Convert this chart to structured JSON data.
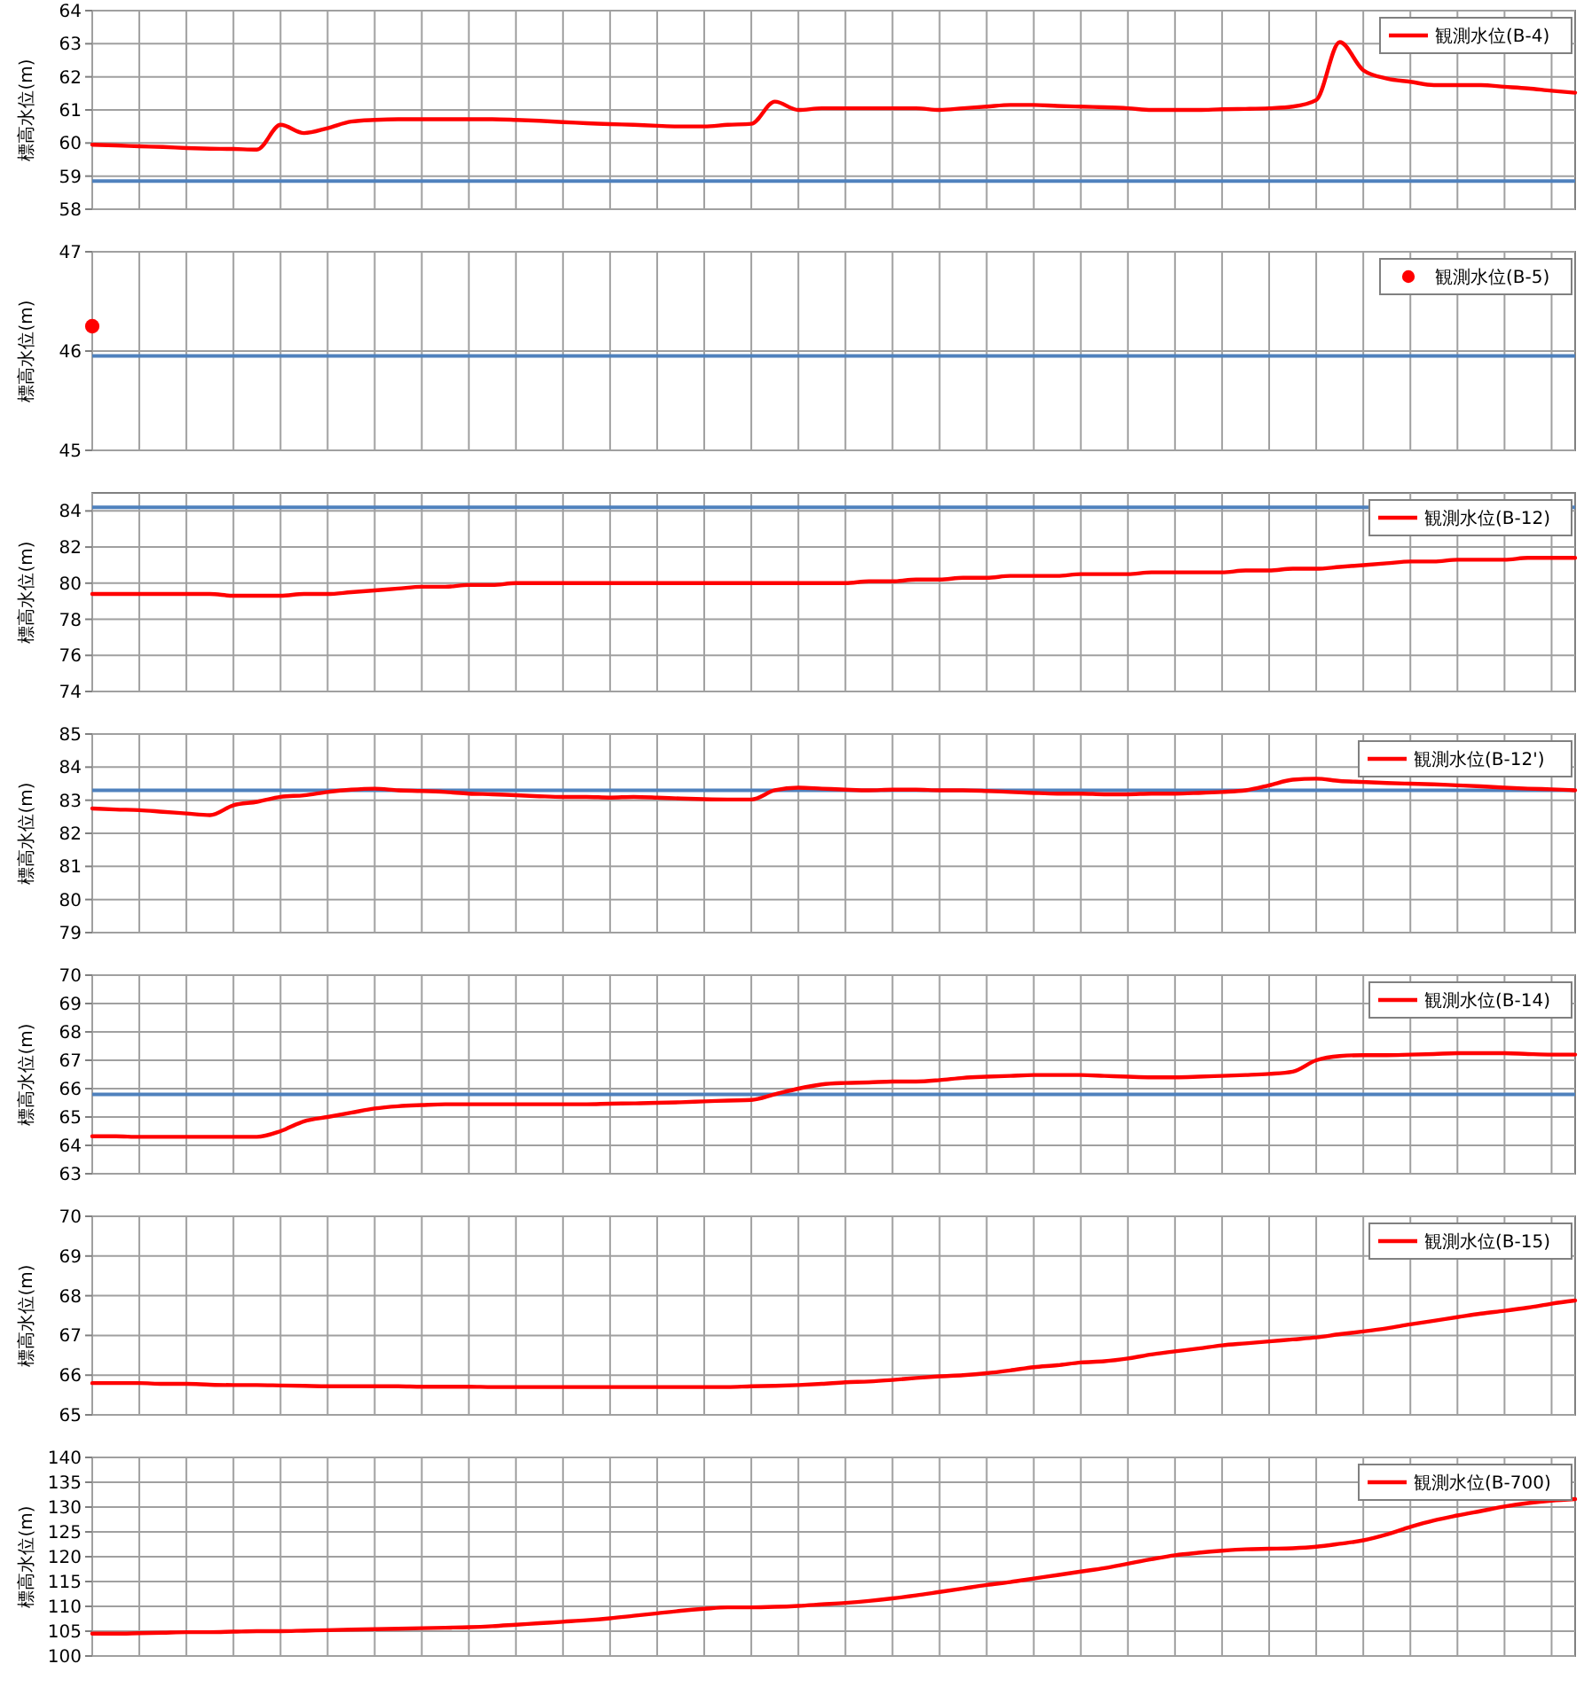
{
  "chart_data": [
    {
      "type": "line",
      "ylabel": "標高水位(m)",
      "categories": [
        null,
        null,
        null,
        null,
        null,
        null,
        null,
        null,
        null,
        null,
        null,
        null,
        null,
        null,
        null,
        null,
        null,
        null,
        null,
        null,
        null,
        null,
        null,
        null,
        null,
        null,
        null,
        null,
        null,
        null,
        null,
        null,
        null,
        null,
        null,
        null,
        null,
        null,
        null,
        null,
        null,
        null,
        null,
        null,
        null,
        null,
        null,
        null,
        null,
        null,
        null,
        null,
        null,
        null,
        null,
        null,
        null,
        null,
        null,
        null,
        null,
        null,
        null,
        null
      ],
      "ylim": [
        58,
        64
      ],
      "yticks": [
        58,
        59,
        60,
        61,
        62,
        63,
        64
      ],
      "grid": true,
      "legend": "top right",
      "tick_labels": "y",
      "ref_lines": [
        {
          "axis": "y",
          "value": 58.85,
          "color": "#4f81bd"
        }
      ],
      "series": [
        {
          "name": "観測水位(B-4)",
          "color": "#ff0000",
          "values": [
            59.95,
            59.93,
            59.9,
            59.88,
            59.85,
            59.83,
            59.82,
            59.8,
            60.55,
            60.3,
            60.45,
            60.65,
            60.7,
            60.72,
            60.72,
            60.72,
            60.72,
            60.72,
            60.7,
            60.67,
            60.63,
            60.6,
            60.57,
            60.55,
            60.52,
            60.5,
            60.5,
            60.55,
            60.58,
            61.25,
            61.0,
            61.05,
            61.05,
            61.05,
            61.05,
            61.05,
            61.0,
            61.05,
            61.1,
            61.15,
            61.15,
            61.12,
            61.1,
            61.08,
            61.05,
            61.0,
            61.0,
            61.0,
            61.02,
            61.03,
            61.05,
            61.1,
            61.3,
            63.05,
            62.2,
            61.95,
            61.85,
            61.75,
            61.75,
            61.75,
            61.7,
            61.65,
            61.58,
            61.52
          ]
        }
      ]
    },
    {
      "type": "scatter",
      "marker": "circle",
      "ylabel": "標高水位(m)",
      "categories": [
        null,
        null,
        null,
        null,
        null,
        null,
        null,
        null,
        null,
        null,
        null,
        null,
        null,
        null,
        null,
        null,
        null,
        null,
        null,
        null,
        null,
        null,
        null,
        null,
        null,
        null,
        null,
        null,
        null,
        null,
        null,
        null,
        null,
        null,
        null,
        null,
        null,
        null,
        null,
        null,
        null,
        null,
        null,
        null,
        null,
        null,
        null,
        null,
        null,
        null,
        null,
        null,
        null,
        null,
        null,
        null,
        null,
        null,
        null,
        null,
        null,
        null,
        null,
        null
      ],
      "ylim": [
        45,
        47
      ],
      "yticks": [
        45,
        46,
        47
      ],
      "grid": true,
      "legend": "top right",
      "tick_labels": "y",
      "ref_lines": [
        {
          "axis": "y",
          "value": 45.95,
          "color": "#4f81bd"
        }
      ],
      "series": [
        {
          "name": "観測水位(B-5)",
          "color": "#ff0000",
          "values": [
            46.25,
            null,
            null,
            null,
            null,
            null,
            null,
            null,
            null,
            null,
            null,
            null,
            null,
            null,
            null,
            null,
            null,
            null,
            null,
            null,
            null,
            null,
            null,
            null,
            null,
            null,
            null,
            null,
            null,
            null,
            null,
            null,
            null,
            null,
            null,
            null,
            null,
            null,
            null,
            null,
            null,
            null,
            null,
            null,
            null,
            null,
            null,
            null,
            null,
            null,
            null,
            null,
            null,
            null,
            null,
            null,
            null,
            null,
            null,
            null,
            null,
            null,
            null,
            null
          ]
        }
      ]
    },
    {
      "type": "line",
      "ylabel": "標高水位(m)",
      "categories": [
        null,
        null,
        null,
        null,
        null,
        null,
        null,
        null,
        null,
        null,
        null,
        null,
        null,
        null,
        null,
        null,
        null,
        null,
        null,
        null,
        null,
        null,
        null,
        null,
        null,
        null,
        null,
        null,
        null,
        null,
        null,
        null,
        null,
        null,
        null,
        null,
        null,
        null,
        null,
        null,
        null,
        null,
        null,
        null,
        null,
        null,
        null,
        null,
        null,
        null,
        null,
        null,
        null,
        null,
        null,
        null,
        null,
        null,
        null,
        null,
        null,
        null,
        null,
        null
      ],
      "ylim": [
        74,
        85
      ],
      "yticks": [
        74,
        76,
        78,
        80,
        82,
        84
      ],
      "grid": true,
      "legend": "top right",
      "tick_labels": "y",
      "ref_lines": [
        {
          "axis": "y",
          "value": 84.2,
          "color": "#4f81bd"
        }
      ],
      "series": [
        {
          "name": "観測水位(B-12)",
          "color": "#ff0000",
          "values": [
            79.4,
            79.4,
            79.4,
            79.4,
            79.4,
            79.4,
            79.3,
            79.3,
            79.3,
            79.4,
            79.4,
            79.5,
            79.6,
            79.7,
            79.8,
            79.8,
            79.9,
            79.9,
            80.0,
            80.0,
            80.0,
            80.0,
            80.0,
            80.0,
            80.0,
            80.0,
            80.0,
            80.0,
            80.0,
            80.0,
            80.0,
            80.0,
            80.0,
            80.1,
            80.1,
            80.2,
            80.2,
            80.3,
            80.3,
            80.4,
            80.4,
            80.4,
            80.5,
            80.5,
            80.5,
            80.6,
            80.6,
            80.6,
            80.6,
            80.7,
            80.7,
            80.8,
            80.8,
            80.9,
            81.0,
            81.1,
            81.2,
            81.2,
            81.3,
            81.3,
            81.3,
            81.4,
            81.4,
            81.4
          ]
        }
      ]
    },
    {
      "type": "line",
      "ylabel": "標高水位(m)",
      "categories": [
        null,
        null,
        null,
        null,
        null,
        null,
        null,
        null,
        null,
        null,
        null,
        null,
        null,
        null,
        null,
        null,
        null,
        null,
        null,
        null,
        null,
        null,
        null,
        null,
        null,
        null,
        null,
        null,
        null,
        null,
        null,
        null,
        null,
        null,
        null,
        null,
        null,
        null,
        null,
        null,
        null,
        null,
        null,
        null,
        null,
        null,
        null,
        null,
        null,
        null,
        null,
        null,
        null,
        null,
        null,
        null,
        null,
        null,
        null,
        null,
        null,
        null,
        null,
        null
      ],
      "ylim": [
        79,
        85
      ],
      "yticks": [
        79,
        80,
        81,
        82,
        83,
        84,
        85
      ],
      "grid": true,
      "legend": "top right",
      "tick_labels": "y",
      "ref_lines": [
        {
          "axis": "y",
          "value": 83.3,
          "color": "#4f81bd"
        }
      ],
      "series": [
        {
          "name": "観測水位(B-12')",
          "color": "#ff0000",
          "values": [
            82.75,
            82.72,
            82.7,
            82.65,
            82.6,
            82.55,
            82.85,
            82.95,
            83.1,
            83.15,
            83.25,
            83.32,
            83.35,
            83.3,
            83.28,
            83.25,
            83.2,
            83.18,
            83.15,
            83.12,
            83.1,
            83.1,
            83.08,
            83.1,
            83.08,
            83.05,
            83.03,
            83.02,
            83.02,
            83.3,
            83.38,
            83.35,
            83.32,
            83.3,
            83.32,
            83.32,
            83.3,
            83.3,
            83.28,
            83.25,
            83.22,
            83.2,
            83.2,
            83.18,
            83.18,
            83.2,
            83.2,
            83.22,
            83.25,
            83.3,
            83.45,
            83.62,
            83.65,
            83.58,
            83.55,
            83.52,
            83.5,
            83.48,
            83.45,
            83.42,
            83.38,
            83.35,
            83.33,
            83.3
          ]
        }
      ]
    },
    {
      "type": "line",
      "ylabel": "標高水位(m)",
      "categories": [
        null,
        null,
        null,
        null,
        null,
        null,
        null,
        null,
        null,
        null,
        null,
        null,
        null,
        null,
        null,
        null,
        null,
        null,
        null,
        null,
        null,
        null,
        null,
        null,
        null,
        null,
        null,
        null,
        null,
        null,
        null,
        null,
        null,
        null,
        null,
        null,
        null,
        null,
        null,
        null,
        null,
        null,
        null,
        null,
        null,
        null,
        null,
        null,
        null,
        null,
        null,
        null,
        null,
        null,
        null,
        null,
        null,
        null,
        null,
        null,
        null,
        null,
        null,
        null
      ],
      "ylim": [
        63,
        70
      ],
      "yticks": [
        63,
        64,
        65,
        66,
        67,
        68,
        69,
        70
      ],
      "grid": true,
      "legend": "top right",
      "tick_labels": "y",
      "ref_lines": [
        {
          "axis": "y",
          "value": 65.8,
          "color": "#4f81bd"
        }
      ],
      "series": [
        {
          "name": "観測水位(B-14)",
          "color": "#ff0000",
          "values": [
            64.32,
            64.32,
            64.3,
            64.3,
            64.3,
            64.3,
            64.3,
            64.3,
            64.5,
            64.85,
            65.0,
            65.15,
            65.3,
            65.38,
            65.42,
            65.45,
            65.45,
            65.45,
            65.45,
            65.45,
            65.45,
            65.45,
            65.47,
            65.48,
            65.5,
            65.52,
            65.55,
            65.58,
            65.6,
            65.8,
            66.0,
            66.15,
            66.2,
            66.22,
            66.25,
            66.25,
            66.3,
            66.38,
            66.42,
            66.45,
            66.48,
            66.48,
            66.48,
            66.45,
            66.42,
            66.4,
            66.4,
            66.42,
            66.45,
            66.48,
            66.52,
            66.6,
            67.0,
            67.15,
            67.18,
            67.18,
            67.2,
            67.22,
            67.25,
            67.25,
            67.25,
            67.22,
            67.2,
            67.2
          ]
        }
      ]
    },
    {
      "type": "line",
      "ylabel": "標高水位(m)",
      "categories": [
        null,
        null,
        null,
        null,
        null,
        null,
        null,
        null,
        null,
        null,
        null,
        null,
        null,
        null,
        null,
        null,
        null,
        null,
        null,
        null,
        null,
        null,
        null,
        null,
        null,
        null,
        null,
        null,
        null,
        null,
        null,
        null,
        null,
        null,
        null,
        null,
        null,
        null,
        null,
        null,
        null,
        null,
        null,
        null,
        null,
        null,
        null,
        null,
        null,
        null,
        null,
        null,
        null,
        null,
        null,
        null,
        null,
        null,
        null,
        null,
        null,
        null,
        null,
        null
      ],
      "ylim": [
        65,
        70
      ],
      "yticks": [
        65,
        66,
        67,
        68,
        69,
        70
      ],
      "grid": true,
      "legend": "top right",
      "tick_labels": "y",
      "series": [
        {
          "name": "観測水位(B-15)",
          "color": "#ff0000",
          "values": [
            65.8,
            65.8,
            65.8,
            65.78,
            65.78,
            65.76,
            65.75,
            65.75,
            65.74,
            65.73,
            65.72,
            65.72,
            65.72,
            65.72,
            65.71,
            65.71,
            65.71,
            65.7,
            65.7,
            65.7,
            65.7,
            65.7,
            65.7,
            65.7,
            65.7,
            65.7,
            65.7,
            65.7,
            65.72,
            65.73,
            65.75,
            65.78,
            65.82,
            65.84,
            65.88,
            65.93,
            65.97,
            66.0,
            66.05,
            66.12,
            66.2,
            66.25,
            66.32,
            66.35,
            66.42,
            66.52,
            66.6,
            66.67,
            66.75,
            66.8,
            66.85,
            66.9,
            66.95,
            67.03,
            67.1,
            67.18,
            67.28,
            67.37,
            67.46,
            67.55,
            67.62,
            67.7,
            67.8,
            67.88
          ]
        }
      ]
    },
    {
      "type": "line",
      "ylabel": "標高水位(m)",
      "categories": [
        null,
        null,
        null,
        null,
        null,
        null,
        null,
        null,
        null,
        null,
        null,
        null,
        null,
        null,
        null,
        null,
        null,
        null,
        null,
        null,
        null,
        null,
        null,
        null,
        null,
        null,
        null,
        null,
        null,
        null,
        null,
        null,
        null,
        null,
        null,
        null,
        null,
        null,
        null,
        null,
        null,
        null,
        null,
        null,
        null,
        null,
        null,
        null,
        null,
        null,
        null,
        null,
        null,
        null,
        null,
        null,
        null,
        null,
        null,
        null,
        null,
        null,
        null,
        null
      ],
      "ylim": [
        100,
        140
      ],
      "yticks": [
        100,
        105,
        110,
        115,
        120,
        125,
        130,
        135,
        140
      ],
      "grid": true,
      "legend": "top right",
      "tick_labels": "y",
      "series": [
        {
          "name": "観測水位(B-700)",
          "color": "#ff0000",
          "values": [
            104.5,
            104.5,
            104.6,
            104.7,
            104.8,
            104.8,
            104.9,
            105.0,
            105.0,
            105.1,
            105.2,
            105.3,
            105.4,
            105.5,
            105.6,
            105.7,
            105.8,
            106.0,
            106.3,
            106.6,
            106.9,
            107.2,
            107.6,
            108.1,
            108.6,
            109.1,
            109.5,
            109.8,
            109.8,
            109.9,
            110.1,
            110.4,
            110.7,
            111.1,
            111.6,
            112.2,
            112.9,
            113.6,
            114.3,
            114.9,
            115.6,
            116.3,
            117.0,
            117.7,
            118.6,
            119.5,
            120.3,
            120.8,
            121.2,
            121.5,
            121.6,
            121.7,
            122.0,
            122.6,
            123.3,
            124.5,
            126.0,
            127.3,
            128.3,
            129.2,
            130.1,
            130.8,
            131.3,
            131.6
          ]
        }
      ]
    }
  ]
}
